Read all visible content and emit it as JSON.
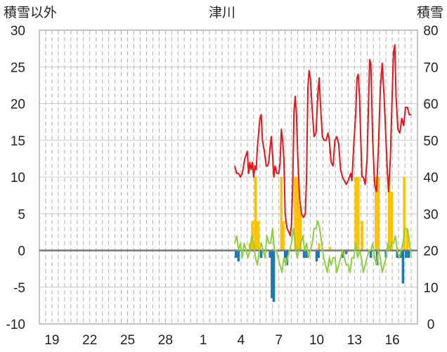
{
  "chart_data": {
    "type": "combo",
    "title": "津川",
    "left_axis_label": "積雪以外",
    "right_axis_label": "積雪",
    "left_ylim": [
      -10,
      30
    ],
    "left_ticks": [
      "30",
      "25",
      "20",
      "15",
      "10",
      "5",
      "0",
      "-5",
      "-10"
    ],
    "right_ylim": [
      0,
      80
    ],
    "right_ticks": [
      "80",
      "70",
      "60",
      "50",
      "40",
      "30",
      "20",
      "10",
      "0"
    ],
    "x_range": [
      0,
      30
    ],
    "x_ticks": [
      {
        "x": 1,
        "label": "19"
      },
      {
        "x": 4,
        "label": "22"
      },
      {
        "x": 7,
        "label": "25"
      },
      {
        "x": 10,
        "label": "28"
      },
      {
        "x": 13,
        "label": "1"
      },
      {
        "x": 16,
        "label": "4"
      },
      {
        "x": 19,
        "label": "7"
      },
      {
        "x": 22,
        "label": "10"
      },
      {
        "x": 25,
        "label": "13"
      },
      {
        "x": 28,
        "label": "16"
      }
    ],
    "grid": "vertical-dashed",
    "colors": {
      "snow_depth": "#e8141b",
      "temperature": "#8dcf3f",
      "snowfall": "#ffc000",
      "precipitation": "#1f77b4"
    },
    "series": [
      {
        "key": "snow_depth",
        "kind": "line",
        "axis": "right",
        "x": [
          15.5,
          15.65,
          15.8,
          15.95,
          16.1,
          16.3,
          16.5,
          16.6,
          16.7,
          16.8,
          16.9,
          17.0,
          17.1,
          17.2,
          17.3,
          17.4,
          17.5,
          17.6,
          17.7,
          17.85,
          18.0,
          18.1,
          18.2,
          18.3,
          18.4,
          18.5,
          18.6,
          18.7,
          18.85,
          19.0,
          19.1,
          19.2,
          19.3,
          19.4,
          19.5,
          19.65,
          19.8,
          19.9,
          20.0,
          20.1,
          20.2,
          20.3,
          20.4,
          20.5,
          20.65,
          20.8,
          20.95,
          21.1,
          21.2,
          21.3,
          21.4,
          21.5,
          21.65,
          21.8,
          21.95,
          22.1,
          22.2,
          22.3,
          22.45,
          22.6,
          22.75,
          22.9,
          23.0,
          23.15,
          23.3,
          23.45,
          23.6,
          23.75,
          23.9,
          24.05,
          24.2,
          24.35,
          24.5,
          24.6,
          24.7,
          24.8,
          24.95,
          25.1,
          25.2,
          25.3,
          25.4,
          25.5,
          25.6,
          25.7,
          25.85,
          26.0,
          26.1,
          26.2,
          26.3,
          26.45,
          26.6,
          26.75,
          26.9,
          27.05,
          27.2,
          27.35,
          27.5,
          27.6,
          27.7,
          27.85,
          28.0,
          28.1,
          28.2,
          28.3,
          28.45,
          28.6,
          28.75,
          28.9,
          29.05,
          29.2,
          29.35,
          29.5
        ],
        "values": [
          43,
          41,
          41,
          40,
          41,
          45,
          47,
          41,
          44,
          42,
          44,
          40,
          43,
          42,
          48,
          52,
          56,
          57,
          50,
          47,
          43,
          43,
          44,
          48,
          51,
          46,
          40,
          43,
          41,
          41,
          44,
          53,
          50,
          45,
          30,
          26,
          25,
          24,
          27,
          38,
          58,
          62,
          57,
          46,
          34,
          30,
          29,
          30,
          40,
          64,
          69,
          67,
          58,
          51,
          52,
          63,
          67,
          60,
          51,
          50,
          50,
          52,
          50,
          44,
          43,
          50,
          51,
          49,
          42,
          40,
          39,
          38,
          39,
          40,
          41,
          39,
          49,
          57,
          67,
          68,
          62,
          50,
          40,
          40,
          38,
          45,
          58,
          72,
          71,
          50,
          38,
          36,
          48,
          64,
          71,
          62,
          50,
          42,
          36,
          45,
          63,
          74,
          76,
          62,
          53,
          52,
          56,
          54,
          59,
          59,
          57,
          57
        ]
      },
      {
        "key": "temperature",
        "kind": "line",
        "axis": "left",
        "x": [
          15.5,
          15.65,
          15.8,
          15.95,
          16.1,
          16.25,
          16.4,
          16.55,
          16.7,
          16.85,
          17.0,
          17.15,
          17.3,
          17.45,
          17.6,
          17.75,
          17.9,
          18.05,
          18.2,
          18.35,
          18.5,
          18.65,
          18.8,
          18.95,
          19.1,
          19.25,
          19.4,
          19.55,
          19.7,
          19.85,
          20.0,
          20.15,
          20.3,
          20.45,
          20.6,
          20.75,
          20.9,
          21.05,
          21.2,
          21.35,
          21.5,
          21.65,
          21.8,
          21.95,
          22.1,
          22.25,
          22.4,
          22.55,
          22.7,
          22.85,
          23.0,
          23.15,
          23.3,
          23.45,
          23.6,
          23.75,
          23.9,
          24.05,
          24.2,
          24.35,
          24.5,
          24.65,
          24.8,
          24.95,
          25.1,
          25.25,
          25.4,
          25.55,
          25.7,
          25.85,
          26.0,
          26.15,
          26.3,
          26.45,
          26.6,
          26.75,
          26.9,
          27.05,
          27.2,
          27.35,
          27.5,
          27.65,
          27.8,
          27.95,
          28.1,
          28.25,
          28.4,
          28.55,
          28.7,
          28.85,
          29.0,
          29.15,
          29.3,
          29.5
        ],
        "values": [
          1,
          2,
          0,
          1,
          -1,
          1,
          0,
          -1,
          0,
          2,
          1,
          -1,
          -2,
          0,
          1,
          0,
          -1,
          2,
          1,
          1,
          3,
          0,
          0,
          -1,
          -2,
          -3,
          -1,
          -2,
          -1,
          0,
          1,
          3,
          1,
          -1,
          0,
          1,
          2,
          0,
          1,
          -1,
          0,
          1,
          3,
          3,
          4,
          3,
          1,
          -1,
          -2,
          -3,
          -1,
          -2,
          -1,
          -1,
          -3,
          -2,
          -1,
          0,
          -1,
          -2,
          -2,
          -3,
          -1,
          -1,
          1,
          -1,
          0,
          -1,
          -3,
          -2,
          -1,
          0,
          0,
          1,
          -1,
          -2,
          0,
          -1,
          -3,
          -2,
          -1,
          1,
          0,
          1,
          1,
          2,
          0,
          -1,
          0,
          1,
          3,
          3,
          2,
          -1
        ]
      },
      {
        "key": "snowfall",
        "kind": "bar",
        "axis": "left",
        "x": [
          16.7,
          16.9,
          17.15,
          17.35,
          19.2,
          19.35,
          20.3,
          20.5,
          20.7,
          22.2,
          23.05,
          25.1,
          25.3,
          25.6,
          26.7,
          26.9,
          27.75,
          27.95,
          28.95,
          29.2
        ],
        "values": [
          1,
          4,
          10,
          4,
          10,
          4,
          10,
          10,
          6,
          1,
          0.5,
          10,
          10,
          4,
          10,
          10,
          10,
          8,
          10,
          3
        ]
      },
      {
        "key": "precipitation",
        "kind": "bar",
        "axis": "left",
        "x": [
          15.6,
          15.8,
          17.6,
          18.3,
          18.45,
          18.6,
          19.5,
          19.65,
          21.0,
          21.2,
          22.0,
          22.15,
          24.1,
          24.35,
          26.3,
          26.8,
          27.5,
          28.4,
          28.7,
          28.85,
          29.1,
          29.3
        ],
        "values": [
          -1,
          -1.5,
          -1,
          -1,
          -6.5,
          -7,
          -1,
          -2,
          -1,
          -1,
          -1.5,
          -1,
          -1,
          -0.5,
          -1,
          -2,
          -1,
          -1,
          -1,
          -4.5,
          -1,
          -1
        ]
      }
    ]
  }
}
